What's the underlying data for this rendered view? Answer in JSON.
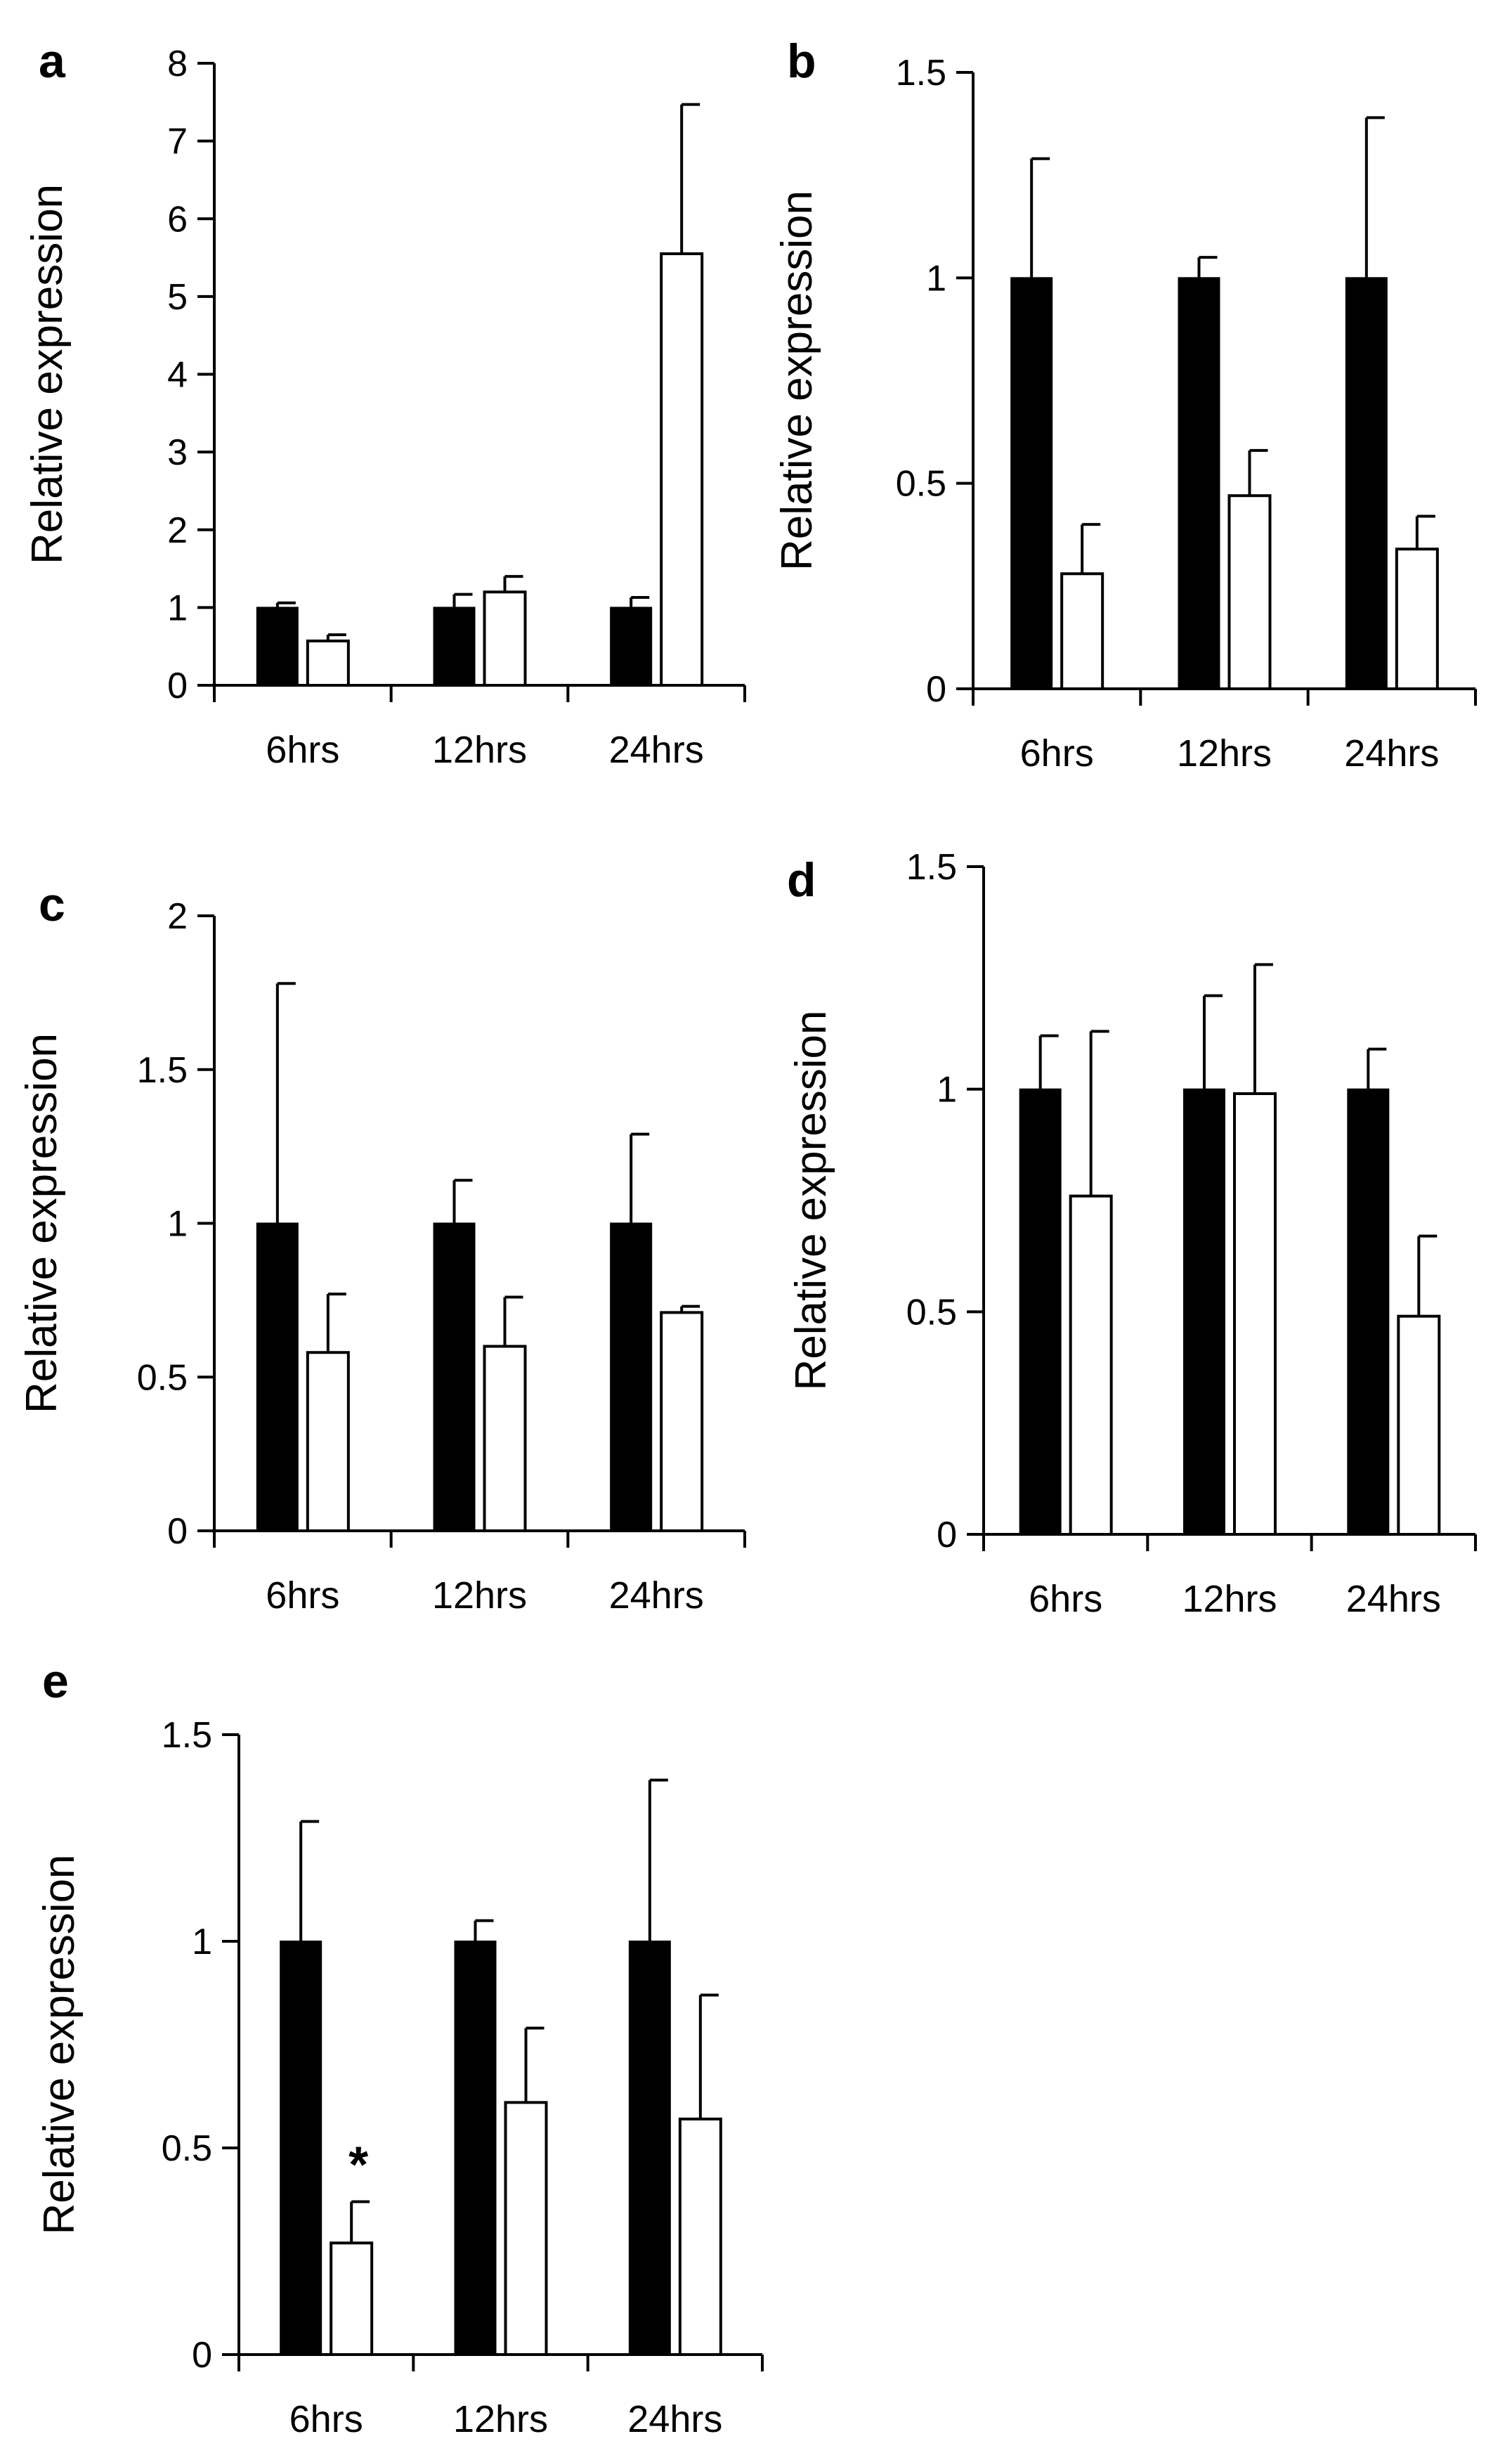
{
  "chart_data": [
    {
      "panel_label": "a",
      "type": "bar",
      "categories": [
        "6hrs",
        "12hrs",
        "24hrs"
      ],
      "ylabel": "Relative expression",
      "ylim": [
        0,
        8
      ],
      "yticks": [
        "0",
        "1",
        "2",
        "3",
        "4",
        "5",
        "6",
        "7",
        "8"
      ],
      "series": [
        {
          "fill": "#000000",
          "values": [
            1.0,
            1.0,
            1.0
          ],
          "errors": [
            0.06,
            0.17,
            0.13
          ]
        },
        {
          "fill": "#ffffff",
          "values": [
            0.57,
            1.2,
            5.55
          ],
          "errors": [
            0.08,
            0.2,
            1.92
          ]
        }
      ],
      "annotations": []
    },
    {
      "panel_label": "b",
      "type": "bar",
      "categories": [
        "6hrs",
        "12hrs",
        "24hrs"
      ],
      "ylabel": "Relative expression",
      "ylim": [
        0,
        1.5
      ],
      "yticks": [
        "0",
        "0.5",
        "1",
        "1.5"
      ],
      "series": [
        {
          "fill": "#000000",
          "values": [
            1.0,
            1.0,
            1.0
          ],
          "errors": [
            0.29,
            0.05,
            0.39
          ]
        },
        {
          "fill": "#ffffff",
          "values": [
            0.28,
            0.47,
            0.34
          ],
          "errors": [
            0.12,
            0.11,
            0.08
          ]
        }
      ],
      "annotations": []
    },
    {
      "panel_label": "c",
      "type": "bar",
      "categories": [
        "6hrs",
        "12hrs",
        "24hrs"
      ],
      "ylabel": "Relative expression",
      "ylim": [
        0,
        2
      ],
      "yticks": [
        "0",
        "0.5",
        "1",
        "1.5",
        "2"
      ],
      "series": [
        {
          "fill": "#000000",
          "values": [
            1.0,
            1.0,
            1.0
          ],
          "errors": [
            0.78,
            0.14,
            0.29
          ]
        },
        {
          "fill": "#ffffff",
          "values": [
            0.58,
            0.6,
            0.71
          ],
          "errors": [
            0.19,
            0.16,
            0.02
          ]
        }
      ],
      "annotations": []
    },
    {
      "panel_label": "d",
      "type": "bar",
      "categories": [
        "6hrs",
        "12hrs",
        "24hrs"
      ],
      "ylabel": "Relative expression",
      "ylim": [
        0,
        1.5
      ],
      "yticks": [
        "0",
        "0.5",
        "1",
        "1.5"
      ],
      "series": [
        {
          "fill": "#000000",
          "values": [
            1.0,
            1.0,
            1.0
          ],
          "errors": [
            0.12,
            0.21,
            0.09
          ]
        },
        {
          "fill": "#ffffff",
          "values": [
            0.76,
            0.99,
            0.49
          ],
          "errors": [
            0.37,
            0.29,
            0.18
          ]
        }
      ],
      "annotations": []
    },
    {
      "panel_label": "e",
      "type": "bar",
      "categories": [
        "6hrs",
        "12hrs",
        "24hrs"
      ],
      "ylabel": "Relative expression",
      "ylim": [
        0,
        1.5
      ],
      "yticks": [
        "0",
        "0.5",
        "1",
        "1.5"
      ],
      "series": [
        {
          "fill": "#000000",
          "values": [
            1.0,
            1.0,
            1.0
          ],
          "errors": [
            0.29,
            0.05,
            0.39
          ]
        },
        {
          "fill": "#ffffff",
          "values": [
            0.27,
            0.61,
            0.57
          ],
          "errors": [
            0.1,
            0.18,
            0.3
          ]
        }
      ],
      "annotations": [
        {
          "category": "6hrs",
          "series": 1,
          "text": "*"
        }
      ]
    }
  ]
}
